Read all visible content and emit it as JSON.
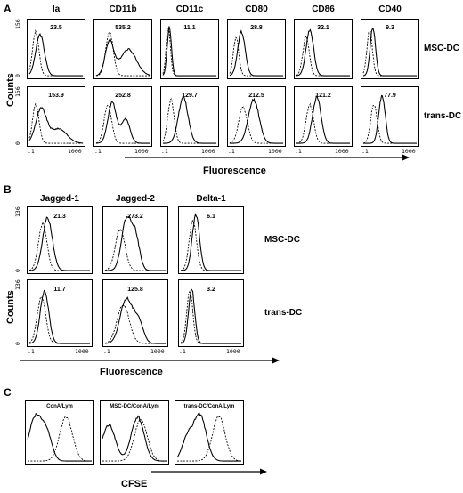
{
  "panel_a": {
    "letter": "A",
    "columns": [
      "Ia",
      "CD11b",
      "CD11c",
      "CD80",
      "CD86",
      "CD40"
    ],
    "rows": [
      "MSC-DC",
      "trans-DC"
    ],
    "mfi": [
      [
        "23.5",
        "535.2",
        "11.1",
        "28.8",
        "32.1",
        "9.3"
      ],
      [
        "153.9",
        "252.8",
        "129.7",
        "212.5",
        "121.2",
        "77.9"
      ]
    ],
    "y_label": "Counts",
    "y_max": "156",
    "y_min": "0",
    "x_label": "Fluorescence",
    "x_ticks": [
      ".1",
      "1000"
    ]
  },
  "panel_b": {
    "letter": "B",
    "columns": [
      "Jagged-1",
      "Jagged-2",
      "Delta-1"
    ],
    "rows": [
      "MSC-DC",
      "trans-DC"
    ],
    "mfi": [
      [
        "21.3",
        "273.2",
        "6.1"
      ],
      [
        "11.7",
        "125.8",
        "3.2"
      ]
    ],
    "y_label": "Counts",
    "y_max": "136",
    "y_min": "0",
    "x_label": "Fluorescence",
    "x_ticks": [
      ".1",
      "1000"
    ]
  },
  "panel_c": {
    "letter": "C",
    "plots": [
      "ConA/Lym",
      "MSC-DC/ConA/Lym",
      "trans-DC/ConA/Lym"
    ],
    "x_label": "CFSE"
  }
}
